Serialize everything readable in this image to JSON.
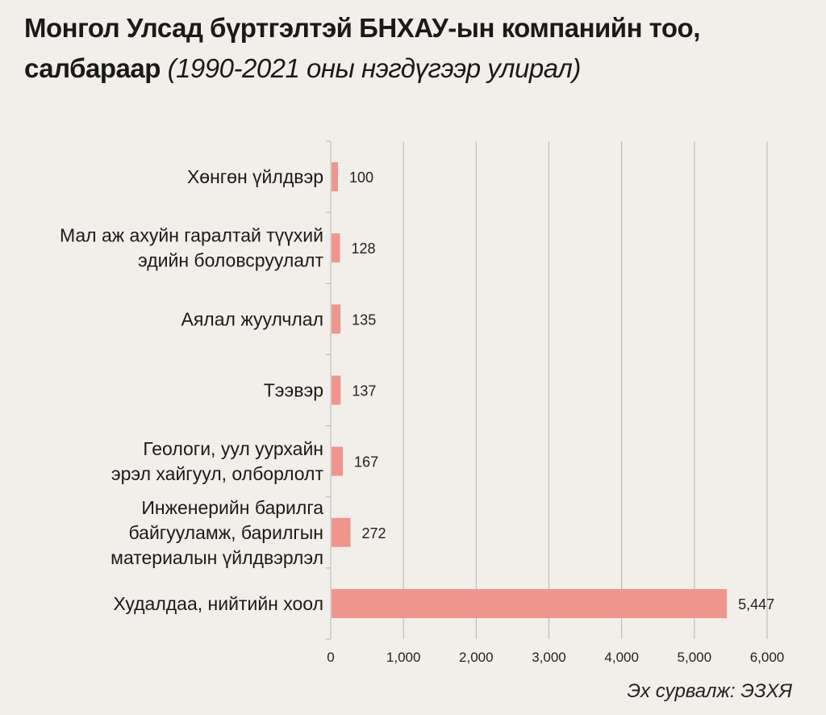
{
  "title": {
    "main": "Монгол Улсад бүртгэлтэй БНХАУ-ын компанийн тоо,",
    "main2": "салбараар",
    "sub": "(1990-2021 оны нэгдүгээр улирал)"
  },
  "source": "Эх сурвалж: ЭЗХЯ",
  "colors": {
    "bar": "#f0958b",
    "grid": "#b5b5b5",
    "background": "#f2efea"
  },
  "chart_data": {
    "type": "bar",
    "orientation": "horizontal",
    "categories": [
      [
        "Хөнгөн үйлдвэр"
      ],
      [
        "Мал аж ахуйн гаралтай түүхий",
        "эдийн боловсруулалт"
      ],
      [
        "Аялал жуулчлал"
      ],
      [
        "Тээвэр"
      ],
      [
        "Геологи, уул уурхайн",
        "эрэл хайгуул, олборлолт"
      ],
      [
        "Инженерийн барилга",
        "байгууламж, барилгын",
        "материалын үйлдвэрлэл"
      ],
      [
        "Худалдаа, нийтийн хоол"
      ]
    ],
    "values": [
      100,
      128,
      135,
      137,
      167,
      272,
      5447
    ],
    "data_labels": [
      "100",
      "128",
      "135",
      "137",
      "167",
      "272",
      "5,447"
    ],
    "xlim": [
      0,
      6000
    ],
    "xticks": [
      0,
      1000,
      2000,
      3000,
      4000,
      5000,
      6000
    ],
    "xtick_labels": [
      "0",
      "1,000",
      "2,000",
      "3,000",
      "4,000",
      "5,000",
      "6,000"
    ],
    "grid": true
  }
}
